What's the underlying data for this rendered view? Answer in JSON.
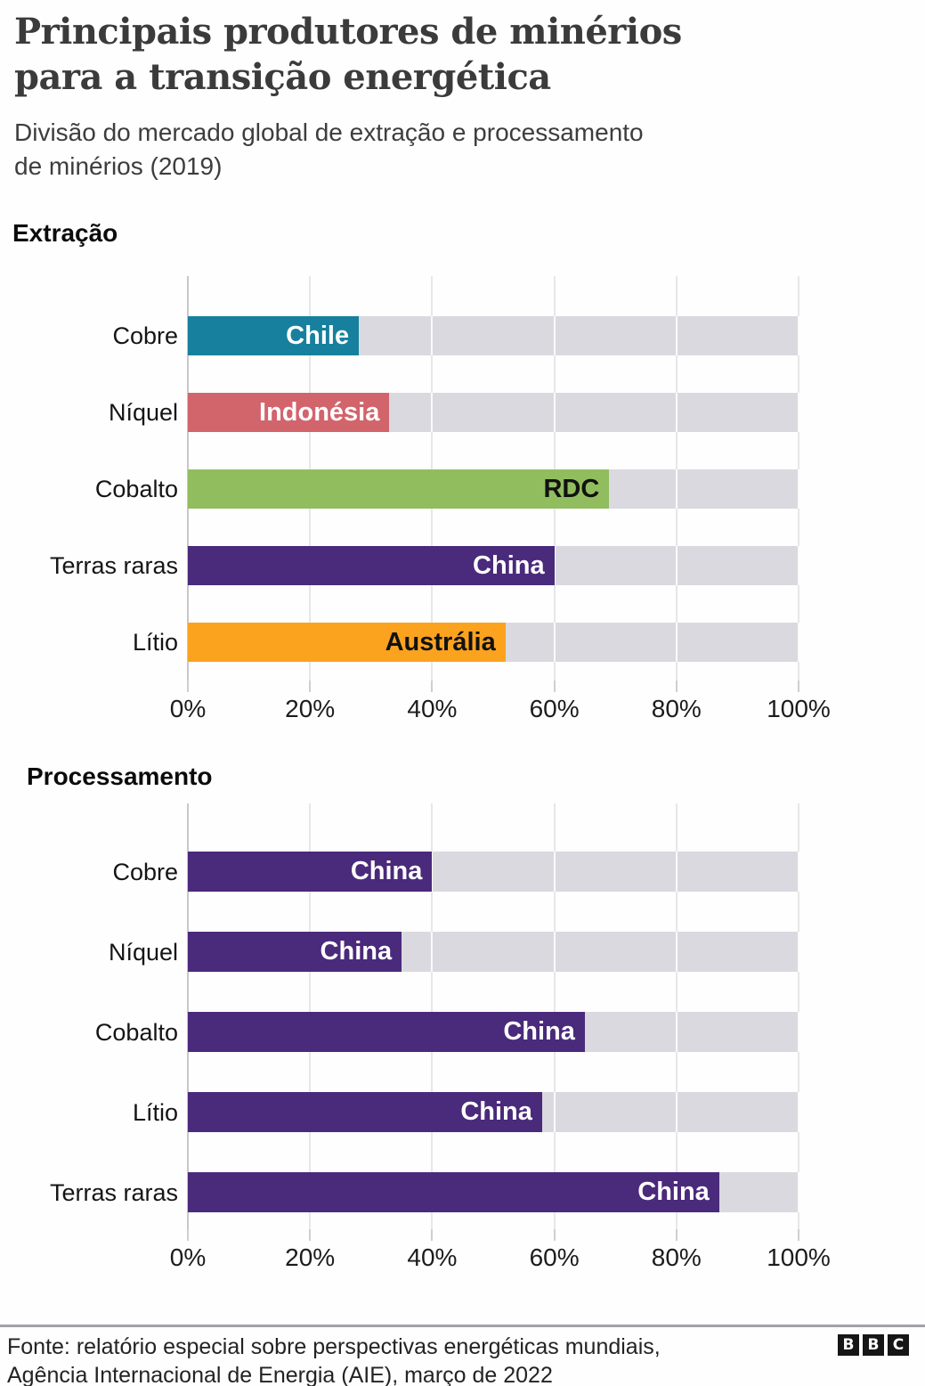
{
  "page": {
    "title_line1": "Principais produtores de minérios",
    "title_line2": "para a transição energética",
    "subtitle_line1": "Divisão do mercado global de extração e processamento",
    "subtitle_line2": "de minérios (2019)",
    "footer_line1": "Fonte: relatório especial sobre perspectivas energéticas mundiais,",
    "footer_line2": "Agência Internacional de Energia (AIE), março de 2022",
    "logo_letters": [
      "B",
      "B",
      "C"
    ]
  },
  "colors": {
    "teal": "#17809e",
    "red": "#d2646c",
    "green": "#91bd5f",
    "purple": "#4a2a7b",
    "orange": "#fba21f",
    "bar_track": "#d9d9df",
    "gridline": "#e7e7ea",
    "axis_line": "#c8c8cc",
    "title_text": "#3b3b3b"
  },
  "chart_data": [
    {
      "type": "bar",
      "orientation": "horizontal",
      "title": "Extração",
      "unit": "% do mercado global",
      "categories": [
        "Cobre",
        "Níquel",
        "Cobalto",
        "Terras raras",
        "Lítio"
      ],
      "values": [
        28,
        33,
        69,
        60,
        52
      ],
      "bar_labels": [
        "Chile",
        "Indonésia",
        "RDC",
        "China",
        "Austrália"
      ],
      "bar_colors": [
        "#17809e",
        "#d2646c",
        "#91bd5f",
        "#4a2a7b",
        "#fba21f"
      ],
      "bar_label_colors": [
        "#ffffff",
        "#ffffff",
        "#111111",
        "#ffffff",
        "#111111"
      ],
      "x_ticks": [
        "0%",
        "20%",
        "40%",
        "60%",
        "80%",
        "100%"
      ],
      "xlim": [
        0,
        100
      ],
      "grid": true,
      "legend": false
    },
    {
      "type": "bar",
      "orientation": "horizontal",
      "title": "Processamento",
      "unit": "% do mercado global",
      "categories": [
        "Cobre",
        "Níquel",
        "Cobalto",
        "Lítio",
        "Terras raras"
      ],
      "values": [
        40,
        35,
        65,
        58,
        87
      ],
      "bar_labels": [
        "China",
        "China",
        "China",
        "China",
        "China"
      ],
      "bar_colors": [
        "#4a2a7b",
        "#4a2a7b",
        "#4a2a7b",
        "#4a2a7b",
        "#4a2a7b"
      ],
      "bar_label_colors": [
        "#ffffff",
        "#ffffff",
        "#ffffff",
        "#ffffff",
        "#ffffff"
      ],
      "x_ticks": [
        "0%",
        "20%",
        "40%",
        "60%",
        "80%",
        "100%"
      ],
      "xlim": [
        0,
        100
      ],
      "grid": true,
      "legend": false
    }
  ]
}
